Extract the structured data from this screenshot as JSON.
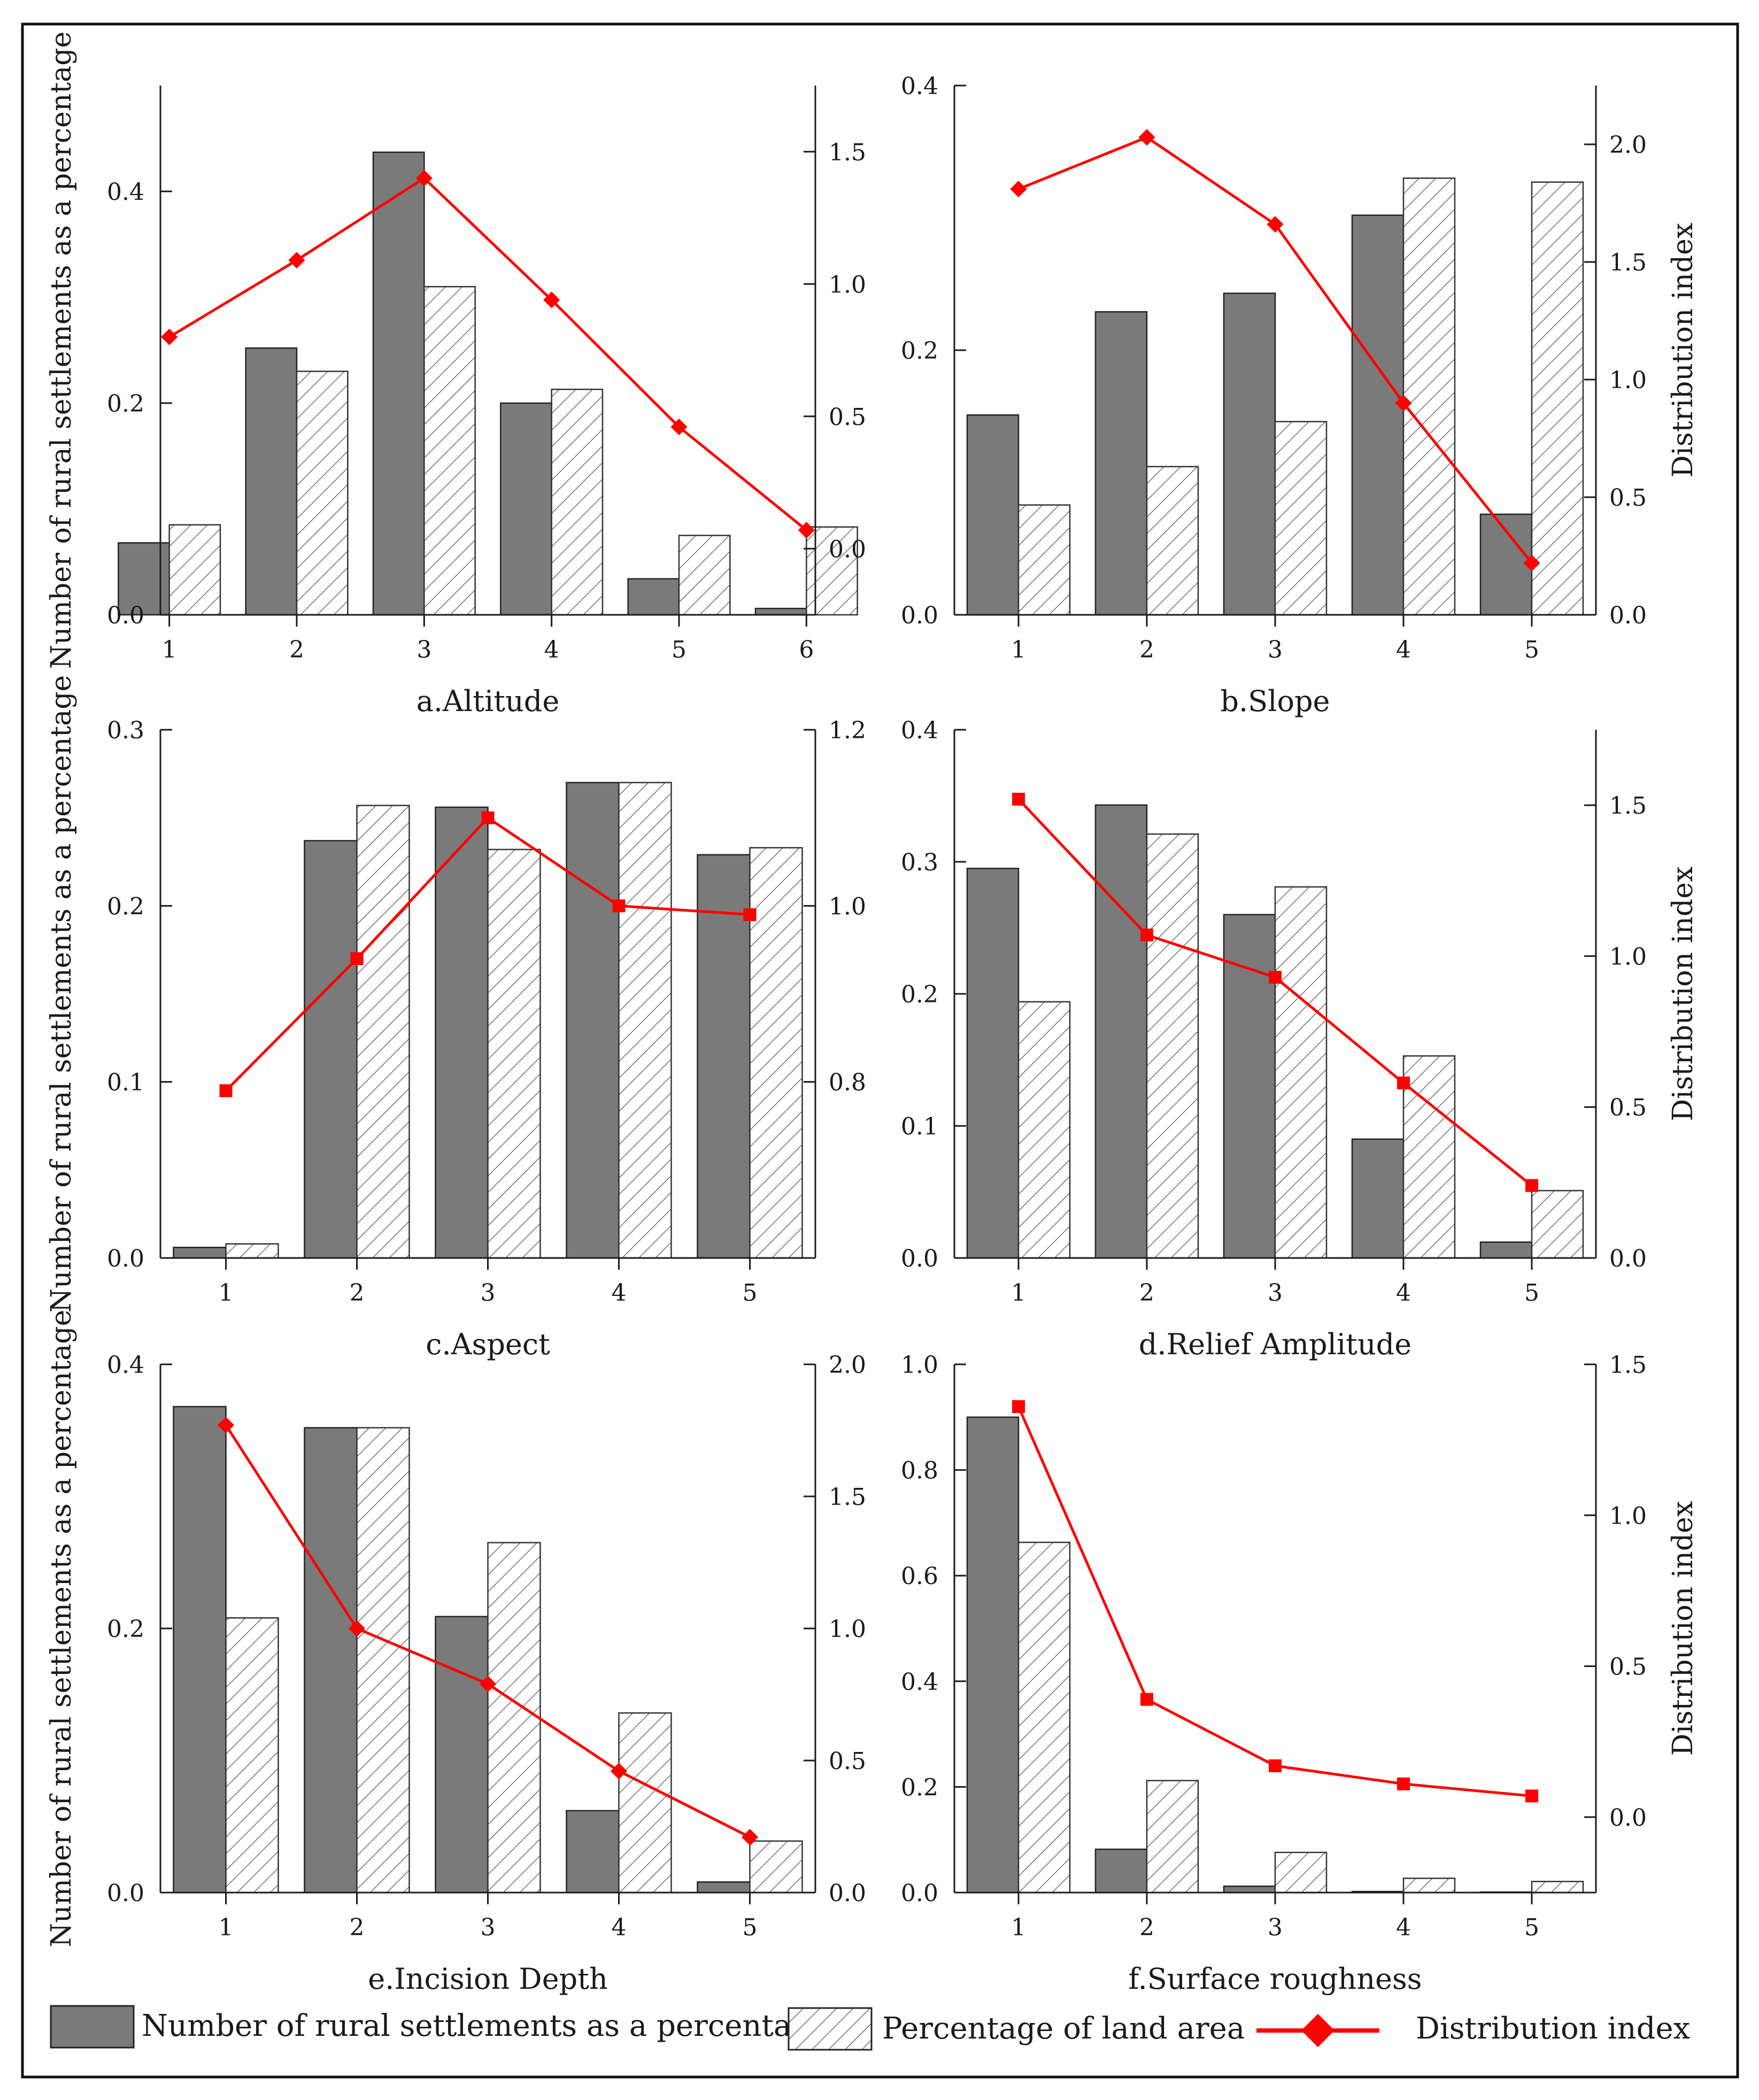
{
  "figure": {
    "left_axis_label": "Number of rural settlements as a percentage",
    "right_axis_label": "Distribution index"
  },
  "legend": {
    "settlements_label": "Number of rural settlements as a percentage",
    "land_label": "Percentage of land area",
    "index_label": "Distribution index"
  },
  "colors": {
    "settlement_bar": "#7a7a7a",
    "land_bar_hatch": "#5a5a5a",
    "index_line": "#ff0000",
    "axis": "#1a1a1a"
  },
  "chart_data": [
    {
      "type": "bar",
      "title": "a.Altitude",
      "categories": [
        "1",
        "2",
        "3",
        "4",
        "5",
        "6"
      ],
      "series": [
        {
          "name": "Number of rural settlements as a percentage",
          "values": [
            0.068,
            0.252,
            0.437,
            0.2,
            0.034,
            0.006
          ]
        },
        {
          "name": "Percentage of land area",
          "values": [
            0.085,
            0.23,
            0.31,
            0.213,
            0.075,
            0.083
          ]
        },
        {
          "name": "Distribution index",
          "axis": "right",
          "values": [
            0.8,
            1.09,
            1.4,
            0.94,
            0.46,
            0.07
          ]
        }
      ],
      "ylim": [
        0,
        0.5
      ],
      "yticks": [
        0.0,
        0.2,
        0.4
      ],
      "y2lim": [
        -0.25,
        1.75
      ],
      "y2ticks": [
        0.0,
        0.5,
        1.0,
        1.5
      ],
      "left_ylabel": "Number of rural settlements as a percentage",
      "right_ylabel": "",
      "marker": "diamond"
    },
    {
      "type": "bar",
      "title": "b.Slope",
      "categories": [
        "1",
        "2",
        "3",
        "4",
        "5"
      ],
      "series": [
        {
          "name": "Number of rural settlements as a percentage",
          "values": [
            0.151,
            0.229,
            0.243,
            0.302,
            0.076
          ]
        },
        {
          "name": "Percentage of land area",
          "values": [
            0.083,
            0.112,
            0.146,
            0.33,
            0.327
          ]
        },
        {
          "name": "Distribution index",
          "axis": "right",
          "values": [
            1.81,
            2.03,
            1.66,
            0.9,
            0.22
          ]
        }
      ],
      "ylim": [
        0,
        0.4
      ],
      "yticks": [
        0.0,
        0.2,
        0.4
      ],
      "y2lim": [
        0,
        2.25
      ],
      "y2ticks": [
        0.0,
        0.5,
        1.0,
        1.5,
        2.0
      ],
      "left_ylabel": "",
      "right_ylabel": "Distribution index",
      "marker": "diamond"
    },
    {
      "type": "bar",
      "title": "c.Aspect",
      "categories": [
        "1",
        "2",
        "3",
        "4",
        "5"
      ],
      "series": [
        {
          "name": "Number of rural settlements as a percentage",
          "values": [
            0.006,
            0.237,
            0.256,
            0.27,
            0.229
          ]
        },
        {
          "name": "Percentage of land area",
          "values": [
            0.008,
            0.257,
            0.232,
            0.27,
            0.233
          ]
        },
        {
          "name": "Distribution index",
          "axis": "right",
          "values": [
            0.79,
            0.94,
            1.1,
            1.0,
            0.99
          ]
        }
      ],
      "ylim": [
        0,
        0.3
      ],
      "yticks": [
        0.0,
        0.1,
        0.2,
        0.3
      ],
      "y2lim": [
        0.6,
        1.2
      ],
      "y2ticks": [
        0.8,
        1.0,
        1.2
      ],
      "left_ylabel": "Number of rural settlements as a percentage",
      "right_ylabel": "",
      "marker": "square"
    },
    {
      "type": "bar",
      "title": "d.Relief Amplitude",
      "categories": [
        "1",
        "2",
        "3",
        "4",
        "5"
      ],
      "series": [
        {
          "name": "Number of rural settlements as a percentage",
          "values": [
            0.295,
            0.343,
            0.26,
            0.09,
            0.012
          ]
        },
        {
          "name": "Percentage of land area",
          "values": [
            0.194,
            0.321,
            0.281,
            0.153,
            0.051
          ]
        },
        {
          "name": "Distribution index",
          "axis": "right",
          "values": [
            1.52,
            1.07,
            0.93,
            0.58,
            0.24
          ]
        }
      ],
      "ylim": [
        0,
        0.4
      ],
      "yticks": [
        0.0,
        0.1,
        0.2,
        0.3,
        0.4
      ],
      "y2lim": [
        0,
        1.75
      ],
      "y2ticks": [
        0.0,
        0.5,
        1.0,
        1.5
      ],
      "left_ylabel": "",
      "right_ylabel": "Distribution index",
      "marker": "square"
    },
    {
      "type": "bar",
      "title": "e.Incision Depth",
      "categories": [
        "1",
        "2",
        "3",
        "4",
        "5"
      ],
      "series": [
        {
          "name": "Number of rural settlements as a percentage",
          "values": [
            0.368,
            0.352,
            0.209,
            0.062,
            0.008
          ]
        },
        {
          "name": "Percentage of land area",
          "values": [
            0.208,
            0.352,
            0.265,
            0.136,
            0.039
          ]
        },
        {
          "name": "Distribution index",
          "axis": "right",
          "values": [
            1.77,
            1.0,
            0.79,
            0.46,
            0.21
          ]
        }
      ],
      "ylim": [
        0,
        0.4
      ],
      "yticks": [
        0.0,
        0.2,
        0.4
      ],
      "y2lim": [
        0,
        2.0
      ],
      "y2ticks": [
        0.0,
        0.5,
        1.0,
        1.5,
        2.0
      ],
      "left_ylabel": "Number of rural settlements as a percentage",
      "right_ylabel": "",
      "marker": "diamond"
    },
    {
      "type": "bar",
      "title": "f.Surface roughness",
      "categories": [
        "1",
        "2",
        "3",
        "4",
        "5"
      ],
      "series": [
        {
          "name": "Number of rural settlements as a percentage",
          "values": [
            0.9,
            0.082,
            0.012,
            0.002,
            0.001
          ]
        },
        {
          "name": "Percentage of land area",
          "values": [
            0.663,
            0.212,
            0.076,
            0.027,
            0.021
          ]
        },
        {
          "name": "Distribution index",
          "axis": "right",
          "values": [
            1.36,
            0.39,
            0.17,
            0.11,
            0.07
          ]
        }
      ],
      "ylim": [
        0,
        1.0
      ],
      "yticks": [
        0.0,
        0.2,
        0.4,
        0.6,
        0.8,
        1.0
      ],
      "y2lim": [
        -0.25,
        1.5
      ],
      "y2ticks": [
        0.0,
        0.5,
        1.0,
        1.5
      ],
      "left_ylabel": "",
      "right_ylabel": "Distribution index",
      "marker": "square"
    }
  ]
}
